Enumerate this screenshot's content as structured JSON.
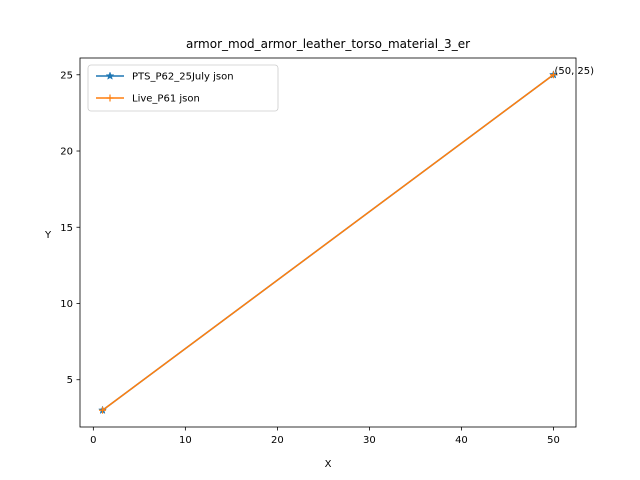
{
  "chart_data": {
    "type": "line",
    "title": "armor_mod_armor_leather_torso_material_3_er",
    "xlabel": "X",
    "ylabel": "Y",
    "xlim": [
      -1.45,
      52.45
    ],
    "ylim": [
      1.9,
      26.1
    ],
    "xticks": [
      0,
      10,
      20,
      30,
      40,
      50
    ],
    "yticks": [
      5,
      10,
      15,
      20,
      25
    ],
    "grid": false,
    "legend_position": "top-left",
    "series": [
      {
        "name": "PTS_P62_25July json",
        "x": [
          1,
          50
        ],
        "y": [
          3,
          25
        ],
        "color": "#1f77b4",
        "marker": "star"
      },
      {
        "name": "Live_P61 json",
        "x": [
          1,
          50
        ],
        "y": [
          3,
          25
        ],
        "color": "#ff7f0e",
        "marker": "plus"
      }
    ],
    "annotations": [
      {
        "text": "(50, 25)",
        "x": 50,
        "y": 25
      }
    ]
  }
}
